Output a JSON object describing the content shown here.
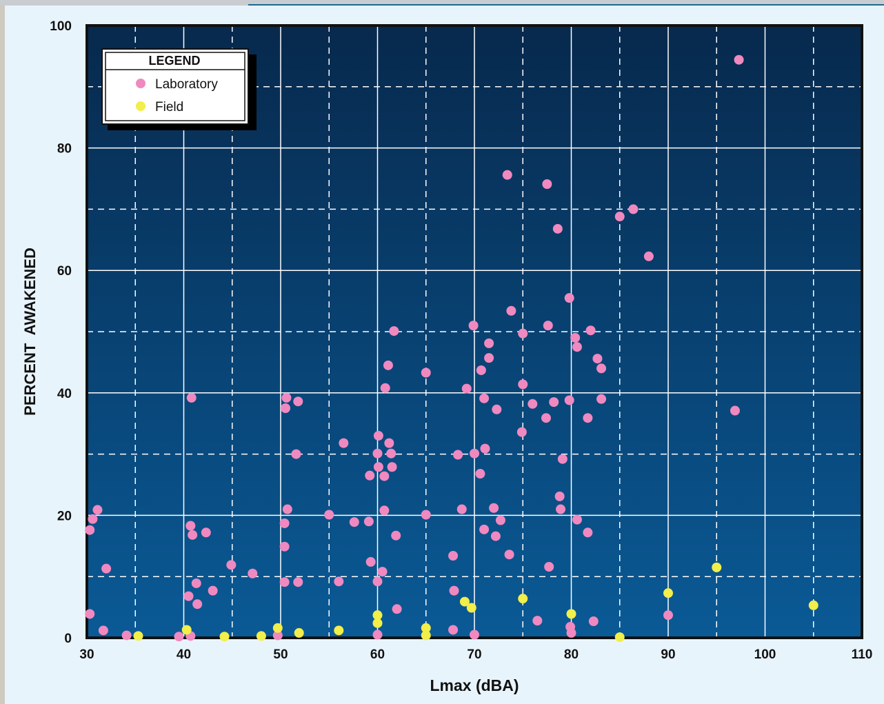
{
  "chart_data": {
    "type": "scatter",
    "xlabel": "Lmax (dBA)",
    "ylabel": "PERCENT  AWAKENED",
    "xlim": [
      30,
      110
    ],
    "ylim": [
      0,
      100
    ],
    "x_ticks": [
      30,
      40,
      50,
      60,
      70,
      80,
      90,
      100,
      110
    ],
    "y_ticks": [
      0,
      20,
      40,
      60,
      80,
      100
    ],
    "grid": true,
    "legend": {
      "title": "LEGEND",
      "position": "top-left"
    },
    "colors": {
      "plot_top": "#07294d",
      "plot_bottom": "#0a5a96",
      "grid": "#ffffff",
      "axis": "#111111"
    },
    "series": [
      {
        "name": "Laboratory",
        "color": "#f089c0",
        "points": [
          [
            97.3,
            94.4
          ],
          [
            73.4,
            75.6
          ],
          [
            77.5,
            74.1
          ],
          [
            78.6,
            66.8
          ],
          [
            85,
            68.8
          ],
          [
            86.4,
            70.0
          ],
          [
            88,
            62.3
          ],
          [
            79.8,
            55.5
          ],
          [
            73.8,
            53.4
          ],
          [
            69.9,
            51.0
          ],
          [
            77.6,
            51.0
          ],
          [
            61.7,
            50.1
          ],
          [
            75,
            49.7
          ],
          [
            80.4,
            49.0
          ],
          [
            82,
            50.2
          ],
          [
            71.5,
            48.1
          ],
          [
            80.6,
            47.5
          ],
          [
            71.5,
            45.7
          ],
          [
            82.7,
            45.6
          ],
          [
            83.1,
            44.0
          ],
          [
            61.1,
            44.5
          ],
          [
            65,
            43.3
          ],
          [
            70.7,
            43.7
          ],
          [
            75,
            41.4
          ],
          [
            60.8,
            40.8
          ],
          [
            69.2,
            40.7
          ],
          [
            71,
            39.1
          ],
          [
            79.8,
            38.8
          ],
          [
            78.2,
            38.5
          ],
          [
            76,
            38.2
          ],
          [
            83.1,
            39.0
          ],
          [
            72.3,
            37.3
          ],
          [
            77.4,
            35.9
          ],
          [
            81.7,
            35.9
          ],
          [
            96.9,
            37.1
          ],
          [
            74.9,
            33.6
          ],
          [
            40.8,
            39.2
          ],
          [
            50.6,
            39.2
          ],
          [
            51.8,
            38.6
          ],
          [
            50.5,
            37.5
          ],
          [
            60.1,
            33.0
          ],
          [
            56.5,
            31.8
          ],
          [
            61.2,
            31.8
          ],
          [
            71.1,
            30.9
          ],
          [
            51.6,
            30.0
          ],
          [
            60,
            30.1
          ],
          [
            61.4,
            30.1
          ],
          [
            68.3,
            29.9
          ],
          [
            70,
            30.1
          ],
          [
            79.1,
            29.2
          ],
          [
            60.1,
            27.9
          ],
          [
            61.5,
            27.9
          ],
          [
            59.2,
            26.5
          ],
          [
            60.7,
            26.4
          ],
          [
            70.6,
            26.8
          ],
          [
            78.8,
            23.1
          ],
          [
            60.7,
            20.8
          ],
          [
            68.7,
            21.0
          ],
          [
            72,
            21.2
          ],
          [
            78.9,
            21.0
          ],
          [
            30.6,
            19.4
          ],
          [
            31.1,
            20.9
          ],
          [
            50.7,
            21.0
          ],
          [
            55,
            20.1
          ],
          [
            65,
            20.1
          ],
          [
            57.6,
            18.9
          ],
          [
            59.1,
            19.0
          ],
          [
            72.7,
            19.2
          ],
          [
            80.6,
            19.3
          ],
          [
            30.3,
            17.6
          ],
          [
            40.7,
            18.3
          ],
          [
            40.9,
            16.8
          ],
          [
            42.3,
            17.2
          ],
          [
            50.4,
            18.7
          ],
          [
            61.9,
            16.7
          ],
          [
            71,
            17.7
          ],
          [
            72.2,
            16.6
          ],
          [
            81.7,
            17.2
          ],
          [
            50.4,
            14.9
          ],
          [
            59.3,
            12.4
          ],
          [
            60.5,
            10.8
          ],
          [
            67.8,
            13.4
          ],
          [
            73.6,
            13.6
          ],
          [
            77.7,
            11.6
          ],
          [
            32,
            11.3
          ],
          [
            44.9,
            11.9
          ],
          [
            47.1,
            10.5
          ],
          [
            41.3,
            8.9
          ],
          [
            50.4,
            9.1
          ],
          [
            51.8,
            9.1
          ],
          [
            56,
            9.2
          ],
          [
            60,
            9.2
          ],
          [
            40.5,
            6.8
          ],
          [
            43,
            7.7
          ],
          [
            41.4,
            5.5
          ],
          [
            67.9,
            7.7
          ],
          [
            62,
            4.7
          ],
          [
            30.3,
            3.9
          ],
          [
            31.7,
            1.2
          ],
          [
            34.1,
            0.4
          ],
          [
            39.5,
            0.2
          ],
          [
            40.7,
            0.3
          ],
          [
            49.7,
            0.4
          ],
          [
            60,
            0.5
          ],
          [
            67.8,
            1.3
          ],
          [
            70,
            0.5
          ],
          [
            76.5,
            2.8
          ],
          [
            79.9,
            1.8
          ],
          [
            80,
            0.8
          ],
          [
            82.3,
            2.7
          ],
          [
            90,
            3.7
          ]
        ]
      },
      {
        "name": "Field",
        "color": "#f2ee4a",
        "points": [
          [
            95,
            11.5
          ],
          [
            90,
            7.3
          ],
          [
            105,
            5.3
          ],
          [
            75,
            6.4
          ],
          [
            69,
            5.9
          ],
          [
            69.7,
            4.9
          ],
          [
            80,
            3.9
          ],
          [
            60,
            3.7
          ],
          [
            60,
            2.4
          ],
          [
            40.3,
            1.3
          ],
          [
            49.7,
            1.6
          ],
          [
            65,
            1.6
          ],
          [
            35.3,
            0.3
          ],
          [
            44.2,
            0.2
          ],
          [
            48,
            0.3
          ],
          [
            51.9,
            0.8
          ],
          [
            56,
            1.2
          ],
          [
            65,
            0.4
          ],
          [
            85,
            0.1
          ]
        ]
      }
    ]
  }
}
